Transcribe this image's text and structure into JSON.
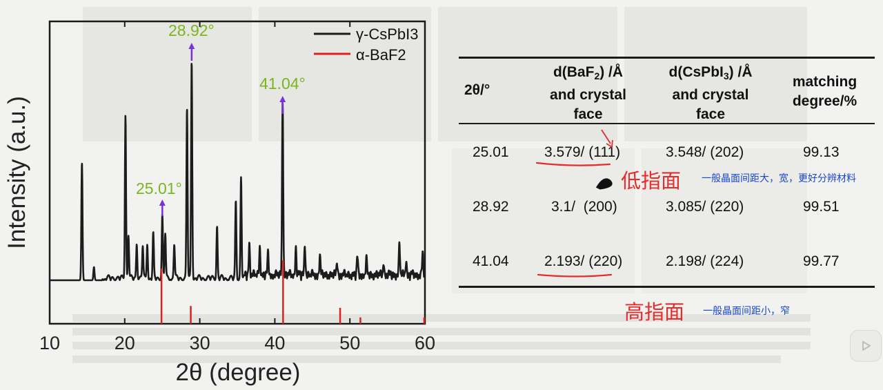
{
  "chart_data": {
    "type": "line",
    "xlabel": "2θ (degree)",
    "ylabel": "Intensity (a.u.)",
    "xlim": [
      10,
      60
    ],
    "x_ticks": [
      "10",
      "20",
      "30",
      "40",
      "50",
      "60"
    ],
    "legend_position": "top-right",
    "series": [
      {
        "name": "γ-CsPbI3",
        "color": "#1a1a1a",
        "peaks": [
          {
            "x": 14.3,
            "y": 0.54
          },
          {
            "x": 15.9,
            "y": 0.06
          },
          {
            "x": 20.1,
            "y": 0.75
          },
          {
            "x": 20.5,
            "y": 0.2
          },
          {
            "x": 21.6,
            "y": 0.16
          },
          {
            "x": 22.4,
            "y": 0.15
          },
          {
            "x": 23.0,
            "y": 0.16
          },
          {
            "x": 23.8,
            "y": 0.2
          },
          {
            "x": 25.01,
            "y": 0.29
          },
          {
            "x": 25.4,
            "y": 0.21
          },
          {
            "x": 26.6,
            "y": 0.16
          },
          {
            "x": 28.3,
            "y": 0.78
          },
          {
            "x": 28.92,
            "y": 1.0
          },
          {
            "x": 32.3,
            "y": 0.24
          },
          {
            "x": 34.8,
            "y": 0.35
          },
          {
            "x": 35.5,
            "y": 0.46
          },
          {
            "x": 36.6,
            "y": 0.15
          },
          {
            "x": 38.0,
            "y": 0.13
          },
          {
            "x": 39.1,
            "y": 0.1
          },
          {
            "x": 41.04,
            "y": 0.81
          },
          {
            "x": 42.8,
            "y": 0.13
          },
          {
            "x": 44.0,
            "y": 0.14
          },
          {
            "x": 46.0,
            "y": 0.09
          },
          {
            "x": 48.3,
            "y": 0.06
          },
          {
            "x": 51.0,
            "y": 0.08
          },
          {
            "x": 52.2,
            "y": 0.07
          },
          {
            "x": 54.5,
            "y": 0.06
          },
          {
            "x": 56.6,
            "y": 0.14
          },
          {
            "x": 57.5,
            "y": 0.07
          },
          {
            "x": 59.7,
            "y": 0.1
          }
        ]
      },
      {
        "name": "α-BaF2",
        "color": "#e0201c",
        "sticks": [
          {
            "x": 24.9,
            "y": 0.87
          },
          {
            "x": 28.8,
            "y": 0.28
          },
          {
            "x": 41.1,
            "y": 1.0
          },
          {
            "x": 48.7,
            "y": 0.25
          },
          {
            "x": 51.4,
            "y": 0.1
          },
          {
            "x": 59.9,
            "y": 0.1
          }
        ]
      }
    ],
    "annotations": [
      {
        "text": "28.92°",
        "x": 28.92
      },
      {
        "text": "41.04°",
        "x": 41.04
      },
      {
        "text": "25.01°",
        "x": 25.01
      }
    ]
  },
  "table": {
    "header": {
      "col1": "2θ/°",
      "col2_a": "d(BaF",
      "col2_sub": "2",
      "col2_b": ") /Å",
      "col2_c": "and crystal",
      "col2_d": "face",
      "col3_a": "d(CsPbI",
      "col3_sub": "3",
      "col3_b": ") /Å",
      "col3_c": "and crystal",
      "col3_d": "face",
      "col4_a": "matching",
      "col4_b": "degree/%"
    },
    "rows": [
      {
        "theta": "25.01",
        "baf2": "3.579/ (111)",
        "cspbi3": "3.548/ (202)",
        "match": "99.13"
      },
      {
        "theta": "28.92",
        "baf2": "3.1/  (200)",
        "cspbi3": "3.085/ (220)",
        "match": "99.51"
      },
      {
        "theta": "41.04",
        "baf2": "2.193/ (220)",
        "cspbi3": "2.198/ (224)",
        "match": "99.77"
      }
    ]
  },
  "notes": {
    "low_index": "低指面",
    "low_index_comment": "一般晶面间距大，宽，更好分辨材料",
    "high_index": "高指面",
    "high_index_comment": "一般晶面间距小，窄"
  },
  "colors": {
    "annotation_green": "#7ab51d",
    "arrow_purple": "#7a32d8",
    "ink_red": "#e52b2b",
    "ink_blue": "#1846c8"
  }
}
